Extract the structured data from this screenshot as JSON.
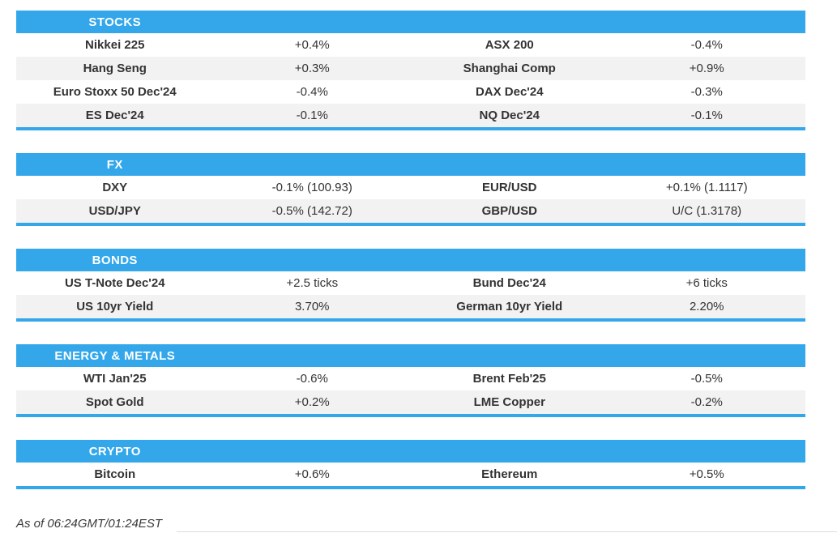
{
  "palette": {
    "accent_blue": "#33a7ea",
    "row_alt_gray": "#f2f2f2",
    "text_color": "#333333",
    "header_text_color": "#ffffff",
    "divider_gray": "#dcdcdc"
  },
  "sections": [
    {
      "title": "STOCKS",
      "rows": [
        {
          "l_label": "Nikkei 225",
          "l_value": "+0.4%",
          "r_label": "ASX 200",
          "r_value": "-0.4%"
        },
        {
          "l_label": "Hang Seng",
          "l_value": "+0.3%",
          "r_label": "Shanghai Comp",
          "r_value": "+0.9%"
        },
        {
          "l_label": "Euro Stoxx 50 Dec'24",
          "l_value": "-0.4%",
          "r_label": "DAX Dec'24",
          "r_value": "-0.3%"
        },
        {
          "l_label": "ES Dec'24",
          "l_value": "-0.1%",
          "r_label": "NQ Dec'24",
          "r_value": "-0.1%"
        }
      ]
    },
    {
      "title": "FX",
      "rows": [
        {
          "l_label": "DXY",
          "l_value": "-0.1% (100.93)",
          "r_label": "EUR/USD",
          "r_value": "+0.1% (1.1117)"
        },
        {
          "l_label": "USD/JPY",
          "l_value": "-0.5% (142.72)",
          "r_label": "GBP/USD",
          "r_value": "U/C (1.3178)"
        }
      ]
    },
    {
      "title": "BONDS",
      "rows": [
        {
          "l_label": "US T-Note Dec'24",
          "l_value": "+2.5 ticks",
          "r_label": "Bund Dec'24",
          "r_value": "+6 ticks"
        },
        {
          "l_label": "US 10yr Yield",
          "l_value": "3.70%",
          "r_label": "German 10yr Yield",
          "r_value": "2.20%"
        }
      ]
    },
    {
      "title": "ENERGY & METALS",
      "rows": [
        {
          "l_label": "WTI Jan'25",
          "l_value": "-0.6%",
          "r_label": "Brent Feb'25",
          "r_value": "-0.5%"
        },
        {
          "l_label": "Spot Gold",
          "l_value": "+0.2%",
          "r_label": "LME Copper",
          "r_value": "-0.2%"
        }
      ]
    },
    {
      "title": "CRYPTO",
      "rows": [
        {
          "l_label": "Bitcoin",
          "l_value": "+0.6%",
          "r_label": "Ethereum",
          "r_value": "+0.5%"
        }
      ]
    }
  ],
  "footer": {
    "as_of": "As of 06:24GMT/01:24EST"
  }
}
